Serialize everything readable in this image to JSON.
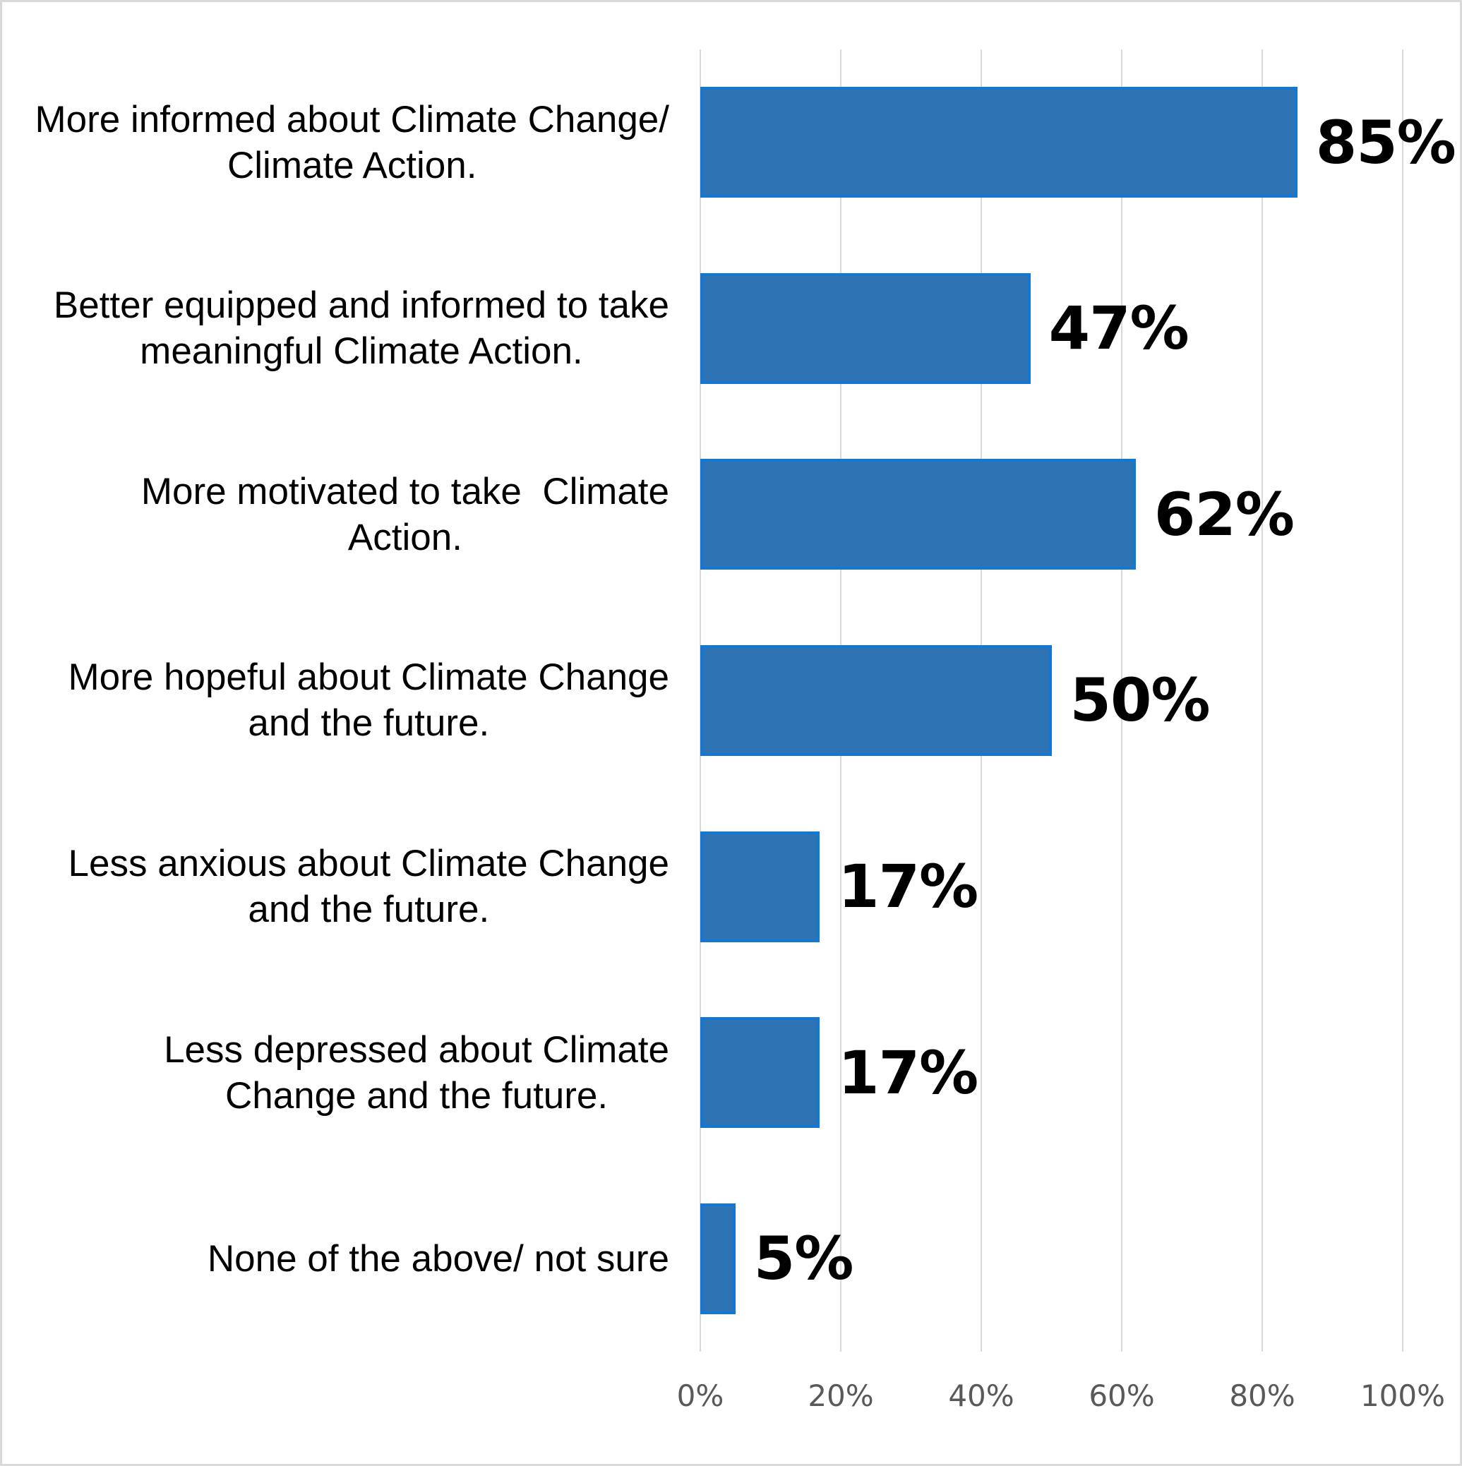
{
  "chart_data": {
    "type": "bar",
    "orientation": "horizontal",
    "title": "",
    "xlabel": "",
    "ylabel": "",
    "xlim": [
      0,
      100
    ],
    "grid": true,
    "legend": "none",
    "categories": [
      [
        "More informed about Climate Change/",
        "Climate Action."
      ],
      [
        "Better equipped and informed to take",
        "meaningful Climate Action."
      ],
      [
        "More motivated to take  Climate",
        "Action."
      ],
      [
        "More hopeful about Climate Change",
        "and the future."
      ],
      [
        "Less anxious about Climate Change",
        "and the future."
      ],
      [
        "Less depressed about Climate",
        "Change and the future."
      ],
      [
        "None of the above/ not sure"
      ]
    ],
    "values": [
      85,
      47,
      62,
      50,
      17,
      17,
      5
    ],
    "value_labels": [
      "85%",
      "47%",
      "62%",
      "50%",
      "17%",
      "17%",
      "5%"
    ],
    "x_ticks": [
      "0%",
      "20%",
      "40%",
      "60%",
      "80%",
      "100%"
    ],
    "x_tick_values": [
      0,
      20,
      40,
      60,
      80,
      100
    ],
    "colors": {
      "bar_fill": "#2E74B5",
      "bar_border": "#1478D2",
      "gridline": "#D9D9D9",
      "canvas_border": "#D9D9D9",
      "tick_text": "#595959",
      "label_text": "#000000",
      "value_text": "#000000",
      "background": "#FFFFFF"
    }
  }
}
